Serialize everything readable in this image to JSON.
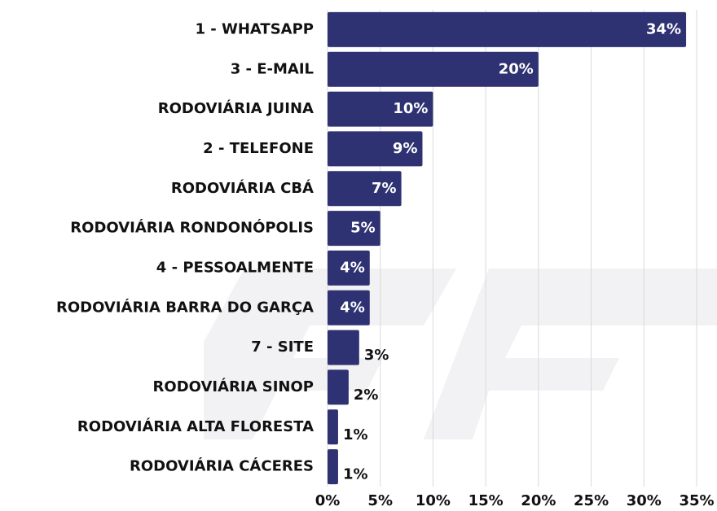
{
  "chart_data": {
    "type": "bar",
    "orientation": "horizontal",
    "categories": [
      "1 - WHATSAPP",
      "3 - E-MAIL",
      "RODOVIÁRIA JUINA",
      "2 - TELEFONE",
      "RODOVIÁRIA CBÁ",
      "RODOVIÁRIA RONDONÓPOLIS",
      "4 - PESSOALMENTE",
      "RODOVIÁRIA BARRA DO GARÇA",
      "7 - SITE",
      "RODOVIÁRIA SINOP",
      "RODOVIÁRIA ALTA FLORESTA",
      "RODOVIÁRIA CÁCERES"
    ],
    "values": [
      34,
      20,
      10,
      9,
      7,
      5,
      4,
      4,
      3,
      2,
      1,
      1
    ],
    "value_labels": [
      "34%",
      "20%",
      "10%",
      "9%",
      "7%",
      "5%",
      "4%",
      "4%",
      "3%",
      "2%",
      "1%",
      "1%"
    ],
    "color": "#2e3272",
    "xlim": [
      0,
      35
    ],
    "xticks": [
      {
        "value": 0,
        "label": "0%"
      },
      {
        "value": 5,
        "label": "5%"
      },
      {
        "value": 10,
        "label": "10%"
      },
      {
        "value": 15,
        "label": "15%"
      },
      {
        "value": 20,
        "label": "20%"
      },
      {
        "value": 25,
        "label": "25%"
      },
      {
        "value": 30,
        "label": "30%"
      },
      {
        "value": 35,
        "label": "35%"
      }
    ],
    "grid": true
  }
}
